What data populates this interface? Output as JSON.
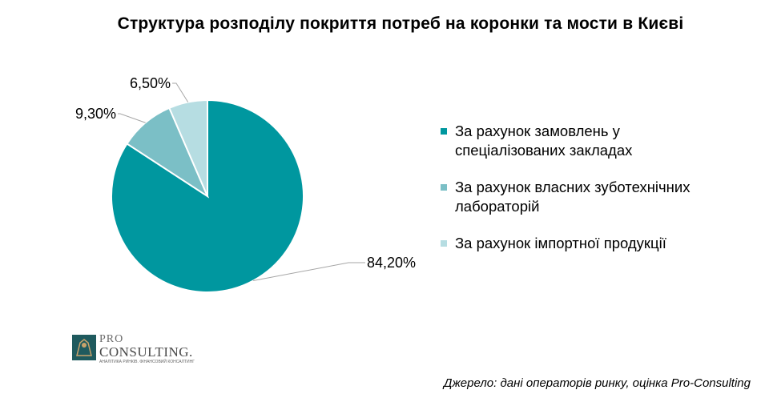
{
  "chart_data": {
    "type": "pie",
    "title": "Структура розподілу покриття потреб на коронки та мости в Києві",
    "categories": [
      "За рахунок замовлень у спеціалізованих закладах",
      "За рахунок власних зуботехнічних лабораторій",
      "За рахунок імпортної продукції"
    ],
    "values": [
      84.2,
      9.3,
      6.5
    ],
    "data_labels": [
      "84,20%",
      "9,30%",
      "6,50%"
    ],
    "colors": [
      "#00979f",
      "#7bbfc6",
      "#b6dde2"
    ],
    "start_angle_deg": 0,
    "direction": "clockwise",
    "legend_position": "right"
  },
  "legend": {
    "items": [
      {
        "label_line1": "За рахунок замовлень у",
        "label_line2": "спеціалізованих закладах",
        "color": "#00979f"
      },
      {
        "label_line1": "За рахунок власних зуботехнічних",
        "label_line2": "лабораторій",
        "color": "#7bbfc6"
      },
      {
        "label_line1": "За рахунок імпортної продукції",
        "label_line2": "",
        "color": "#b6dde2"
      }
    ]
  },
  "logo": {
    "pro": "PRO",
    "consulting": "CONSULTING.",
    "tagline": "АНАЛІТИКА РИНКІВ. ФІНАНСОВИЙ КОНСАЛТИНГ"
  },
  "source_note": "Джерело: дані операторів ринку, оцінка Pro-Consulting"
}
